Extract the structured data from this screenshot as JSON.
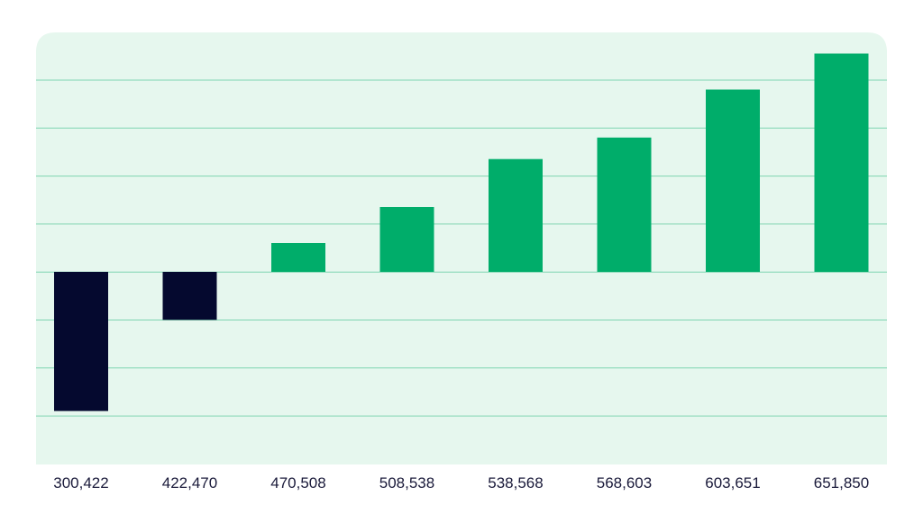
{
  "chart_data": {
    "type": "bar",
    "categories": [
      "300,422",
      "422,470",
      "470,508",
      "508,538",
      "538,568",
      "568,603",
      "603,651",
      "651,850"
    ],
    "values": [
      -2.9,
      -1.0,
      0.6,
      1.35,
      2.35,
      2.8,
      3.8,
      4.55
    ],
    "ylim": [
      -4,
      4.4
    ],
    "grid": true,
    "legend": "none",
    "title": "",
    "xlabel": "",
    "ylabel": "",
    "colors": {
      "positive": "#00ad6a",
      "negative": "#05092f",
      "plot_background": "#e6f7ee",
      "gridline": "#7fd5b1"
    }
  }
}
